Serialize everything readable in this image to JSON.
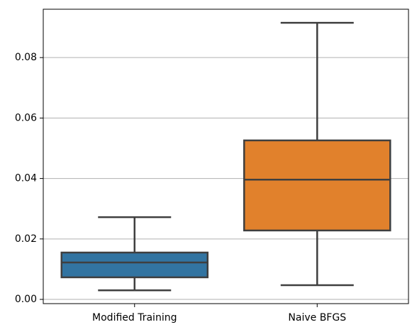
{
  "chart_data": {
    "type": "box",
    "categories": [
      "Modified Training",
      "Naive BFGS"
    ],
    "boxes": [
      {
        "whislo": 0.003,
        "q1": 0.0073,
        "med": 0.0122,
        "q3": 0.0155,
        "whishi": 0.0272,
        "color": "#3274a1"
      },
      {
        "whislo": 0.0047,
        "q1": 0.0228,
        "med": 0.0396,
        "q3": 0.0526,
        "whishi": 0.0915,
        "color": "#e1812c"
      }
    ],
    "ylim": [
      -0.0014,
      0.096
    ],
    "yticks": [
      {
        "value": 0,
        "label": "0.00"
      },
      {
        "value": 0.02,
        "label": "0.02"
      },
      {
        "value": 0.04,
        "label": "0.04"
      },
      {
        "value": 0.06,
        "label": "0.06"
      },
      {
        "value": 0.08,
        "label": "0.08"
      }
    ],
    "grid": true
  }
}
